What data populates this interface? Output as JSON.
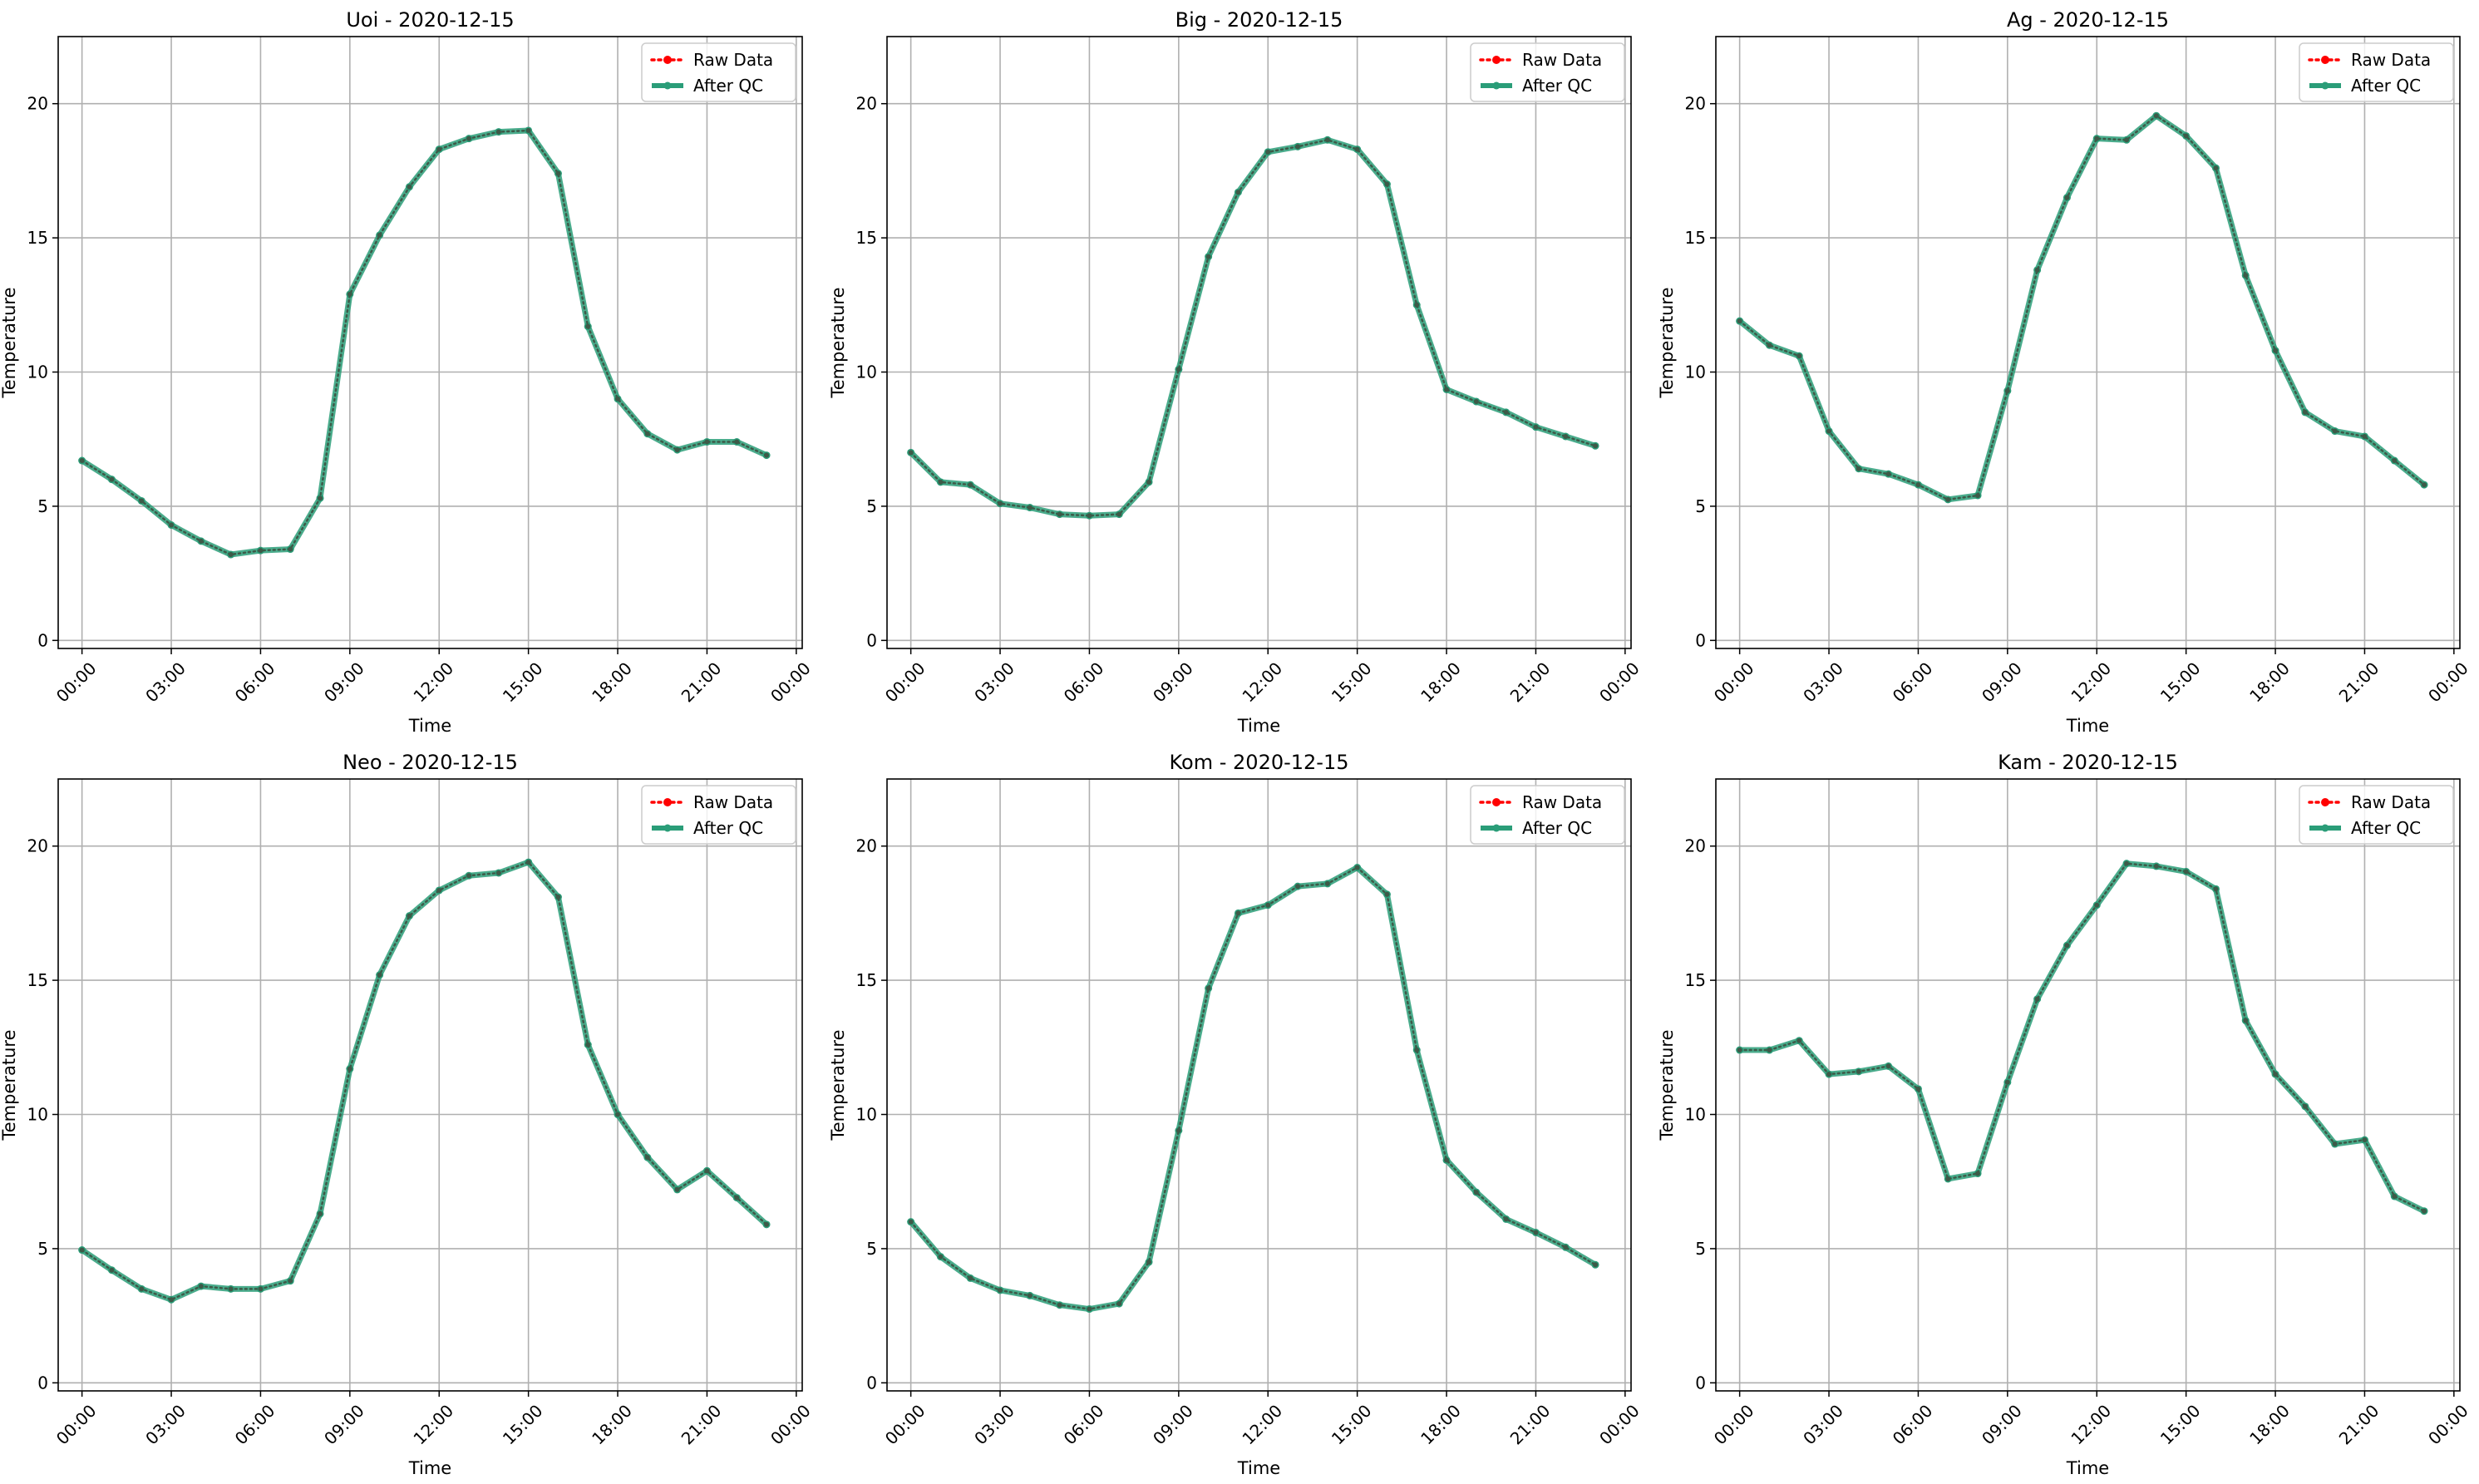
{
  "figure": {
    "colors": {
      "raw": "#ff0000",
      "qc": "#2a9d78",
      "grid": "#b0b0b0",
      "axis": "#000000"
    }
  },
  "legend_labels": [
    "Raw Data",
    "After QC"
  ],
  "chart_data": [
    {
      "type": "line",
      "title": "Uoi - 2020-12-15",
      "xlabel": "Time",
      "ylabel": "Temperature",
      "xlim": [
        -0.8,
        24.2
      ],
      "ylim": [
        -0.3,
        22.5
      ],
      "xticks": [
        0,
        3,
        6,
        9,
        12,
        15,
        18,
        21,
        24
      ],
      "xticklabels": [
        "00:00",
        "03:00",
        "06:00",
        "09:00",
        "12:00",
        "15:00",
        "18:00",
        "21:00",
        "00:00"
      ],
      "yticks": [
        0,
        5,
        10,
        15,
        20
      ],
      "grid": true,
      "legend": "top-right",
      "x": [
        0,
        1,
        2,
        3,
        4,
        5,
        6,
        7,
        8,
        9,
        10,
        11,
        12,
        13,
        14,
        15,
        16,
        17,
        18,
        19,
        20,
        21,
        22,
        23
      ],
      "series": [
        {
          "name": "Raw Data",
          "values": [
            6.7,
            6.0,
            5.2,
            4.3,
            3.7,
            3.2,
            3.35,
            3.4,
            5.3,
            12.9,
            15.1,
            16.9,
            18.3,
            18.7,
            18.95,
            19.0,
            17.4,
            11.7,
            9.0,
            7.7,
            7.1,
            7.4,
            7.4,
            6.9
          ]
        },
        {
          "name": "After QC",
          "values": [
            6.7,
            6.0,
            5.2,
            4.3,
            3.7,
            3.2,
            3.35,
            3.4,
            5.3,
            12.9,
            15.1,
            16.9,
            18.3,
            18.7,
            18.95,
            19.0,
            17.4,
            11.7,
            9.0,
            7.7,
            7.1,
            7.4,
            7.4,
            6.9
          ]
        }
      ]
    },
    {
      "type": "line",
      "title": "Big - 2020-12-15",
      "xlabel": "Time",
      "ylabel": "Temperature",
      "xlim": [
        -0.8,
        24.2
      ],
      "ylim": [
        -0.3,
        22.5
      ],
      "xticks": [
        0,
        3,
        6,
        9,
        12,
        15,
        18,
        21,
        24
      ],
      "xticklabels": [
        "00:00",
        "03:00",
        "06:00",
        "09:00",
        "12:00",
        "15:00",
        "18:00",
        "21:00",
        "00:00"
      ],
      "yticks": [
        0,
        5,
        10,
        15,
        20
      ],
      "grid": true,
      "legend": "top-right",
      "x": [
        0,
        1,
        2,
        3,
        4,
        5,
        6,
        7,
        8,
        9,
        10,
        11,
        12,
        13,
        14,
        15,
        16,
        17,
        18,
        19,
        20,
        21,
        22,
        23
      ],
      "series": [
        {
          "name": "Raw Data",
          "values": [
            7.0,
            5.9,
            5.8,
            5.1,
            4.95,
            4.7,
            4.65,
            4.7,
            5.9,
            10.1,
            14.3,
            16.7,
            18.2,
            18.4,
            18.65,
            18.3,
            17.0,
            12.5,
            9.35,
            8.9,
            8.5,
            7.95,
            7.6,
            7.25
          ]
        },
        {
          "name": "After QC",
          "values": [
            7.0,
            5.9,
            5.8,
            5.1,
            4.95,
            4.7,
            4.65,
            4.7,
            5.9,
            10.1,
            14.3,
            16.7,
            18.2,
            18.4,
            18.65,
            18.3,
            17.0,
            12.5,
            9.35,
            8.9,
            8.5,
            7.95,
            7.6,
            7.25
          ]
        }
      ]
    },
    {
      "type": "line",
      "title": "Ag - 2020-12-15",
      "xlabel": "Time",
      "ylabel": "Temperature",
      "xlim": [
        -0.8,
        24.2
      ],
      "ylim": [
        -0.3,
        22.5
      ],
      "xticks": [
        0,
        3,
        6,
        9,
        12,
        15,
        18,
        21,
        24
      ],
      "xticklabels": [
        "00:00",
        "03:00",
        "06:00",
        "09:00",
        "12:00",
        "15:00",
        "18:00",
        "21:00",
        "00:00"
      ],
      "yticks": [
        0,
        5,
        10,
        15,
        20
      ],
      "grid": true,
      "legend": "top-right",
      "x": [
        0,
        1,
        2,
        3,
        4,
        5,
        6,
        7,
        8,
        9,
        10,
        11,
        12,
        13,
        14,
        15,
        16,
        17,
        18,
        19,
        20,
        21,
        22,
        23
      ],
      "series": [
        {
          "name": "Raw Data",
          "values": [
            11.9,
            11.0,
            10.6,
            7.8,
            6.4,
            6.2,
            5.8,
            5.25,
            5.4,
            9.3,
            13.8,
            16.5,
            18.7,
            18.65,
            19.55,
            18.8,
            17.6,
            13.6,
            10.8,
            8.5,
            7.8,
            7.6,
            6.7,
            5.8
          ]
        },
        {
          "name": "After QC",
          "values": [
            11.9,
            11.0,
            10.6,
            7.8,
            6.4,
            6.2,
            5.8,
            5.25,
            5.4,
            9.3,
            13.8,
            16.5,
            18.7,
            18.65,
            19.55,
            18.8,
            17.6,
            13.6,
            10.8,
            8.5,
            7.8,
            7.6,
            6.7,
            5.8
          ]
        }
      ]
    },
    {
      "type": "line",
      "title": "Neo - 2020-12-15",
      "xlabel": "Time",
      "ylabel": "Temperature",
      "xlim": [
        -0.8,
        24.2
      ],
      "ylim": [
        -0.3,
        22.5
      ],
      "xticks": [
        0,
        3,
        6,
        9,
        12,
        15,
        18,
        21,
        24
      ],
      "xticklabels": [
        "00:00",
        "03:00",
        "06:00",
        "09:00",
        "12:00",
        "15:00",
        "18:00",
        "21:00",
        "00:00"
      ],
      "yticks": [
        0,
        5,
        10,
        15,
        20
      ],
      "grid": true,
      "legend": "top-right",
      "x": [
        0,
        1,
        2,
        3,
        4,
        5,
        6,
        7,
        8,
        9,
        10,
        11,
        12,
        13,
        14,
        15,
        16,
        17,
        18,
        19,
        20,
        21,
        22,
        23
      ],
      "series": [
        {
          "name": "Raw Data",
          "values": [
            4.95,
            4.2,
            3.5,
            3.1,
            3.6,
            3.5,
            3.5,
            3.8,
            6.3,
            11.7,
            15.2,
            17.4,
            18.35,
            18.9,
            19.0,
            19.4,
            18.1,
            12.6,
            10.0,
            8.4,
            7.2,
            7.9,
            6.9,
            5.9
          ]
        },
        {
          "name": "After QC",
          "values": [
            4.95,
            4.2,
            3.5,
            3.1,
            3.6,
            3.5,
            3.5,
            3.8,
            6.3,
            11.7,
            15.2,
            17.4,
            18.35,
            18.9,
            19.0,
            19.4,
            18.1,
            12.6,
            10.0,
            8.4,
            7.2,
            7.9,
            6.9,
            5.9
          ]
        }
      ]
    },
    {
      "type": "line",
      "title": "Kom - 2020-12-15",
      "xlabel": "Time",
      "ylabel": "Temperature",
      "xlim": [
        -0.8,
        24.2
      ],
      "ylim": [
        -0.3,
        22.5
      ],
      "xticks": [
        0,
        3,
        6,
        9,
        12,
        15,
        18,
        21,
        24
      ],
      "xticklabels": [
        "00:00",
        "03:00",
        "06:00",
        "09:00",
        "12:00",
        "15:00",
        "18:00",
        "21:00",
        "00:00"
      ],
      "yticks": [
        0,
        5,
        10,
        15,
        20
      ],
      "grid": true,
      "legend": "top-right",
      "x": [
        0,
        1,
        2,
        3,
        4,
        5,
        6,
        7,
        8,
        9,
        10,
        11,
        12,
        13,
        14,
        15,
        16,
        17,
        18,
        19,
        20,
        21,
        22,
        23
      ],
      "series": [
        {
          "name": "Raw Data",
          "values": [
            6.0,
            4.7,
            3.9,
            3.45,
            3.25,
            2.9,
            2.75,
            2.95,
            4.5,
            9.4,
            14.7,
            17.5,
            17.8,
            18.5,
            18.6,
            19.2,
            18.2,
            12.4,
            8.3,
            7.1,
            6.1,
            5.6,
            5.05,
            4.4
          ]
        },
        {
          "name": "After QC",
          "values": [
            6.0,
            4.7,
            3.9,
            3.45,
            3.25,
            2.9,
            2.75,
            2.95,
            4.5,
            9.4,
            14.7,
            17.5,
            17.8,
            18.5,
            18.6,
            19.2,
            18.2,
            12.4,
            8.3,
            7.1,
            6.1,
            5.6,
            5.05,
            4.4
          ]
        }
      ]
    },
    {
      "type": "line",
      "title": "Kam - 2020-12-15",
      "xlabel": "Time",
      "ylabel": "Temperature",
      "xlim": [
        -0.8,
        24.2
      ],
      "ylim": [
        -0.3,
        22.5
      ],
      "xticks": [
        0,
        3,
        6,
        9,
        12,
        15,
        18,
        21,
        24
      ],
      "xticklabels": [
        "00:00",
        "03:00",
        "06:00",
        "09:00",
        "12:00",
        "15:00",
        "18:00",
        "21:00",
        "00:00"
      ],
      "yticks": [
        0,
        5,
        10,
        15,
        20
      ],
      "grid": true,
      "legend": "top-right",
      "x": [
        0,
        1,
        2,
        3,
        4,
        5,
        6,
        7,
        8,
        9,
        10,
        11,
        12,
        13,
        14,
        15,
        16,
        17,
        18,
        19,
        20,
        21,
        22,
        23
      ],
      "series": [
        {
          "name": "Raw Data",
          "values": [
            12.4,
            12.4,
            12.75,
            11.5,
            11.6,
            11.8,
            10.95,
            7.6,
            7.8,
            11.2,
            14.3,
            16.3,
            17.8,
            19.35,
            19.25,
            19.05,
            18.4,
            13.5,
            11.5,
            10.3,
            8.9,
            9.05,
            6.95,
            6.4
          ]
        },
        {
          "name": "After QC",
          "values": [
            12.4,
            12.4,
            12.75,
            11.5,
            11.6,
            11.8,
            10.95,
            7.6,
            7.8,
            11.2,
            14.3,
            16.3,
            17.8,
            19.35,
            19.25,
            19.05,
            18.4,
            13.5,
            11.5,
            10.3,
            8.9,
            9.05,
            6.95,
            6.4
          ]
        }
      ]
    }
  ]
}
